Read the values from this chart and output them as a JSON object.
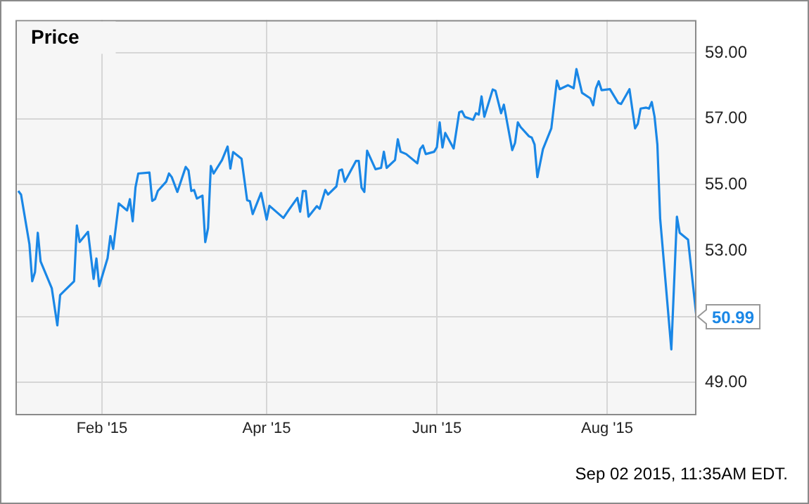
{
  "chart_data": {
    "type": "line",
    "title": "Price",
    "x": [
      "2015-01-02",
      "2015-01-03",
      "2015-01-06",
      "2015-01-07",
      "2015-01-08",
      "2015-01-09",
      "2015-01-10",
      "2015-01-14",
      "2015-01-16",
      "2015-01-17",
      "2015-01-22",
      "2015-01-23",
      "2015-01-24",
      "2015-01-27",
      "2015-01-29",
      "2015-01-30",
      "2015-01-31",
      "2015-02-03",
      "2015-02-04",
      "2015-02-05",
      "2015-02-07",
      "2015-02-10",
      "2015-02-11",
      "2015-02-12",
      "2015-02-13",
      "2015-02-14",
      "2015-02-18",
      "2015-02-19",
      "2015-02-20",
      "2015-02-21",
      "2015-02-24",
      "2015-02-25",
      "2015-02-26",
      "2015-02-28",
      "2015-03-03",
      "2015-03-04",
      "2015-03-05",
      "2015-03-06",
      "2015-03-07",
      "2015-03-09",
      "2015-03-10",
      "2015-03-11",
      "2015-03-12",
      "2015-03-13",
      "2015-03-16",
      "2015-03-18",
      "2015-03-19",
      "2015-03-20",
      "2015-03-23",
      "2015-03-25",
      "2015-03-26",
      "2015-03-27",
      "2015-03-30",
      "2015-04-01",
      "2015-04-02",
      "2015-04-07",
      "2015-04-09",
      "2015-04-12",
      "2015-04-13",
      "2015-04-14",
      "2015-04-15",
      "2015-04-16",
      "2015-04-19",
      "2015-04-20",
      "2015-04-22",
      "2015-04-23",
      "2015-04-26",
      "2015-04-27",
      "2015-04-28",
      "2015-04-29",
      "2015-05-03",
      "2015-05-04",
      "2015-05-05",
      "2015-05-06",
      "2015-05-07",
      "2015-05-10",
      "2015-05-12",
      "2015-05-13",
      "2015-05-14",
      "2015-05-17",
      "2015-05-18",
      "2015-05-19",
      "2015-05-21",
      "2015-05-25",
      "2015-05-26",
      "2015-05-27",
      "2015-05-28",
      "2015-05-31",
      "2015-06-01",
      "2015-06-02",
      "2015-06-03",
      "2015-06-04",
      "2015-06-07",
      "2015-06-09",
      "2015-06-10",
      "2015-06-11",
      "2015-06-14",
      "2015-06-15",
      "2015-06-16",
      "2015-06-17",
      "2015-06-18",
      "2015-06-21",
      "2015-06-22",
      "2015-06-24",
      "2015-06-25",
      "2015-06-28",
      "2015-06-29",
      "2015-06-30",
      "2015-07-01",
      "2015-07-04",
      "2015-07-05",
      "2015-07-06",
      "2015-07-07",
      "2015-07-09",
      "2015-07-12",
      "2015-07-14",
      "2015-07-15",
      "2015-07-18",
      "2015-07-20",
      "2015-07-21",
      "2015-07-23",
      "2015-07-26",
      "2015-07-27",
      "2015-07-28",
      "2015-07-29",
      "2015-07-30",
      "2015-08-02",
      "2015-08-05",
      "2015-08-06",
      "2015-08-09",
      "2015-08-11",
      "2015-08-12",
      "2015-08-13",
      "2015-08-15",
      "2015-08-16",
      "2015-08-17",
      "2015-08-18",
      "2015-08-19",
      "2015-08-20",
      "2015-08-24",
      "2015-08-26",
      "2015-08-27",
      "2015-08-30",
      "2015-09-02"
    ],
    "series": [
      {
        "color": "#1a87e6",
        "values": [
          54.81,
          54.7,
          53.19,
          52.07,
          52.35,
          53.54,
          52.67,
          51.86,
          50.73,
          51.65,
          52.07,
          53.76,
          53.26,
          53.57,
          52.14,
          52.76,
          51.92,
          52.77,
          53.44,
          53.05,
          54.43,
          54.22,
          54.56,
          53.89,
          54.92,
          55.34,
          55.37,
          54.51,
          54.56,
          54.81,
          55.09,
          55.34,
          55.23,
          54.78,
          55.54,
          55.43,
          54.81,
          54.84,
          54.58,
          54.67,
          53.26,
          53.68,
          55.57,
          55.34,
          55.75,
          56.16,
          55.49,
          55.99,
          55.79,
          54.53,
          54.5,
          54.11,
          54.75,
          53.94,
          54.36,
          53.99,
          54.24,
          54.6,
          54.18,
          54.81,
          54.81,
          54.03,
          54.35,
          54.27,
          54.84,
          54.7,
          54.95,
          55.43,
          55.46,
          55.09,
          55.72,
          55.72,
          54.91,
          54.78,
          56.03,
          55.47,
          55.51,
          56.0,
          55.51,
          55.75,
          56.38,
          56.0,
          55.93,
          55.65,
          56.08,
          56.19,
          55.93,
          56.0,
          56.14,
          56.89,
          56.13,
          56.57,
          56.1,
          57.2,
          57.23,
          57.06,
          56.97,
          57.17,
          57.13,
          57.68,
          57.06,
          57.89,
          57.85,
          57.17,
          57.43,
          56.05,
          56.27,
          56.89,
          56.75,
          56.47,
          56.43,
          56.22,
          55.23,
          56.08,
          56.71,
          58.16,
          57.9,
          58.02,
          57.93,
          58.51,
          57.79,
          57.62,
          57.41,
          57.93,
          58.14,
          57.87,
          57.9,
          57.48,
          57.45,
          57.9,
          56.71,
          56.85,
          57.31,
          57.34,
          57.31,
          57.51,
          57.06,
          56.22,
          53.97,
          50.0,
          54.03,
          53.54,
          53.33,
          50.99
        ]
      }
    ],
    "xlim": [
      "2015-01-01",
      "2015-09-02"
    ],
    "xticks": [
      {
        "value": "2015-02-01",
        "label": "Feb '15"
      },
      {
        "value": "2015-04-01",
        "label": "Apr '15"
      },
      {
        "value": "2015-06-01",
        "label": "Jun '15"
      },
      {
        "value": "2015-08-01",
        "label": "Aug '15"
      }
    ],
    "ylim": [
      48,
      60
    ],
    "yticks": [
      {
        "value": 49,
        "label": "49.00"
      },
      {
        "value": 51,
        "label": null
      },
      {
        "value": 53,
        "label": "53.00"
      },
      {
        "value": 55,
        "label": "55.00"
      },
      {
        "value": 57,
        "label": "57.00"
      },
      {
        "value": 59,
        "label": "59.00"
      }
    ],
    "grid": true,
    "legend": false,
    "marker": "none",
    "line_style": "solid",
    "annotations": [
      {
        "text": "50.99",
        "x": "2015-09-02",
        "y": 50.99
      },
      "Sep 02 2015, 11:35AM EDT."
    ]
  }
}
